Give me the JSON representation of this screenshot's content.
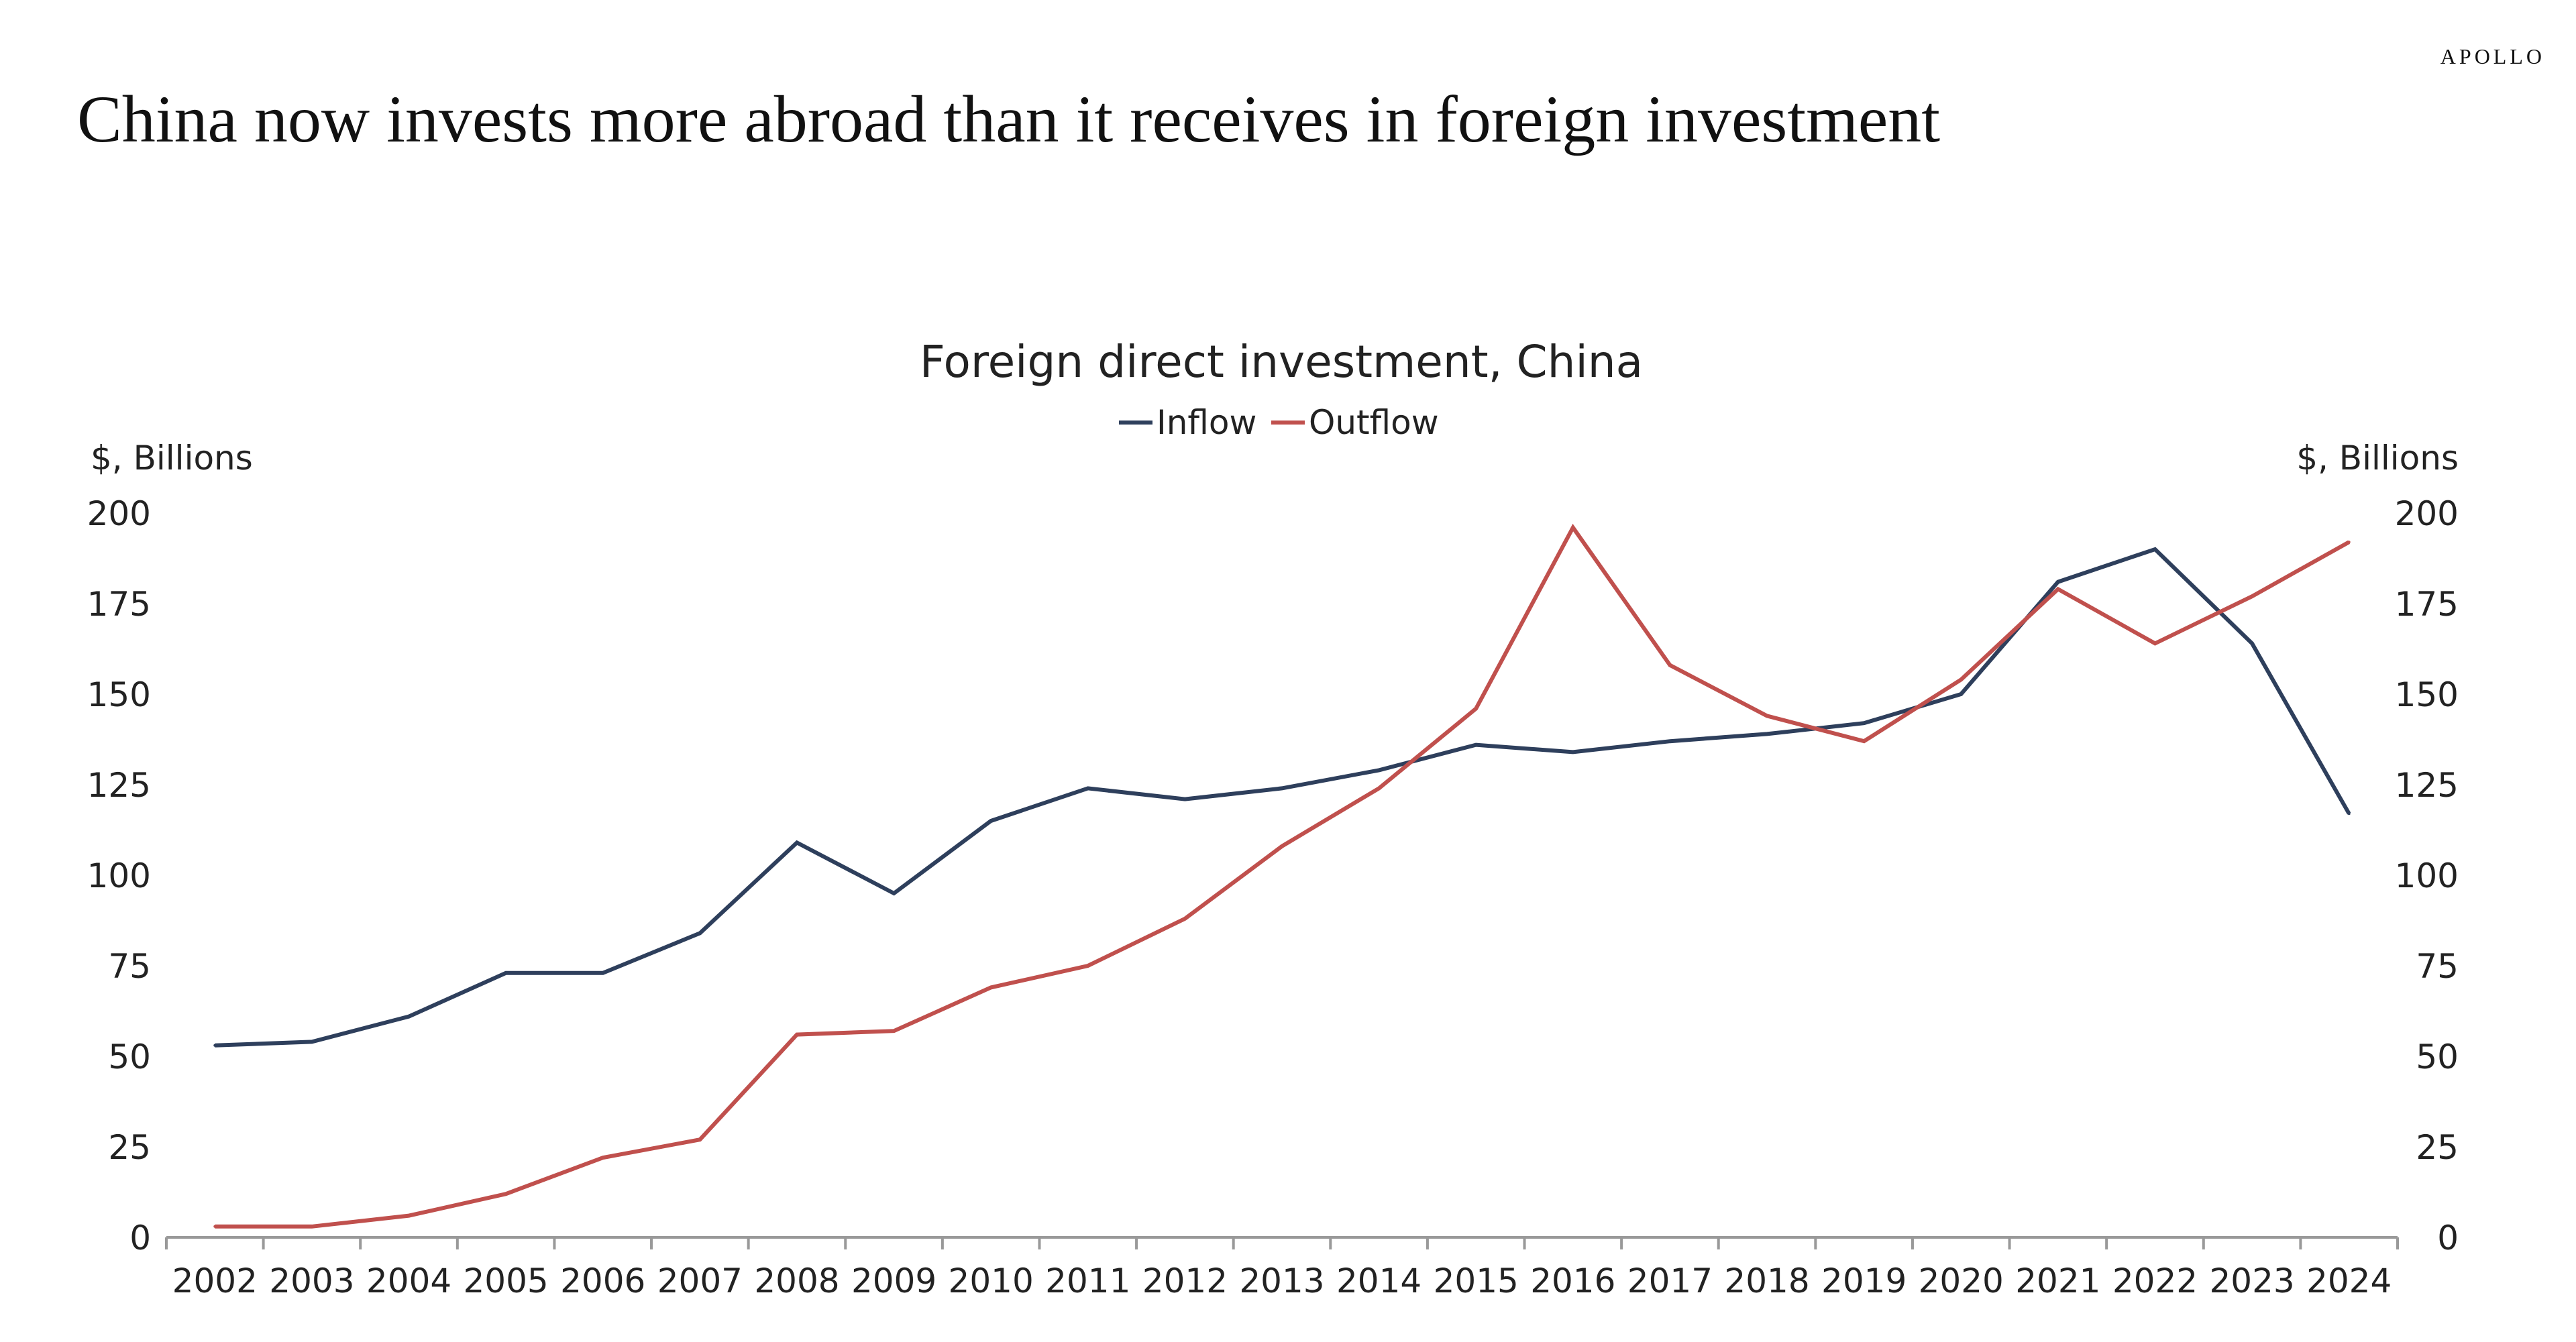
{
  "brand": "APOLLO",
  "headline": "China now invests more abroad than it receives in foreign investment",
  "chart_data": {
    "type": "line",
    "title": "Foreign direct investment, China",
    "ylabel_left": "$, Billions",
    "ylabel_right": "$, Billions",
    "ylim": [
      0,
      200
    ],
    "yticks": [
      0,
      25,
      50,
      75,
      100,
      125,
      150,
      175,
      200
    ],
    "legend_position": "top-center",
    "grid": false,
    "categories": [
      "2002",
      "2003",
      "2004",
      "2005",
      "2006",
      "2007",
      "2008",
      "2009",
      "2010",
      "2011",
      "2012",
      "2013",
      "2014",
      "2015",
      "2016",
      "2017",
      "2018",
      "2019",
      "2020",
      "2021",
      "2022",
      "2023",
      "2024"
    ],
    "series": [
      {
        "name": "Inflow",
        "color": "#2e3f5c",
        "values": [
          53,
          54,
          61,
          73,
          73,
          84,
          109,
          95,
          115,
          124,
          121,
          124,
          129,
          136,
          134,
          137,
          139,
          142,
          150,
          181,
          190,
          164,
          117
        ]
      },
      {
        "name": "Outflow",
        "color": "#c0504d",
        "values": [
          3,
          3,
          6,
          12,
          22,
          27,
          56,
          57,
          69,
          75,
          88,
          108,
          124,
          146,
          196,
          158,
          144,
          137,
          154,
          179,
          164,
          177,
          192
        ]
      }
    ]
  }
}
